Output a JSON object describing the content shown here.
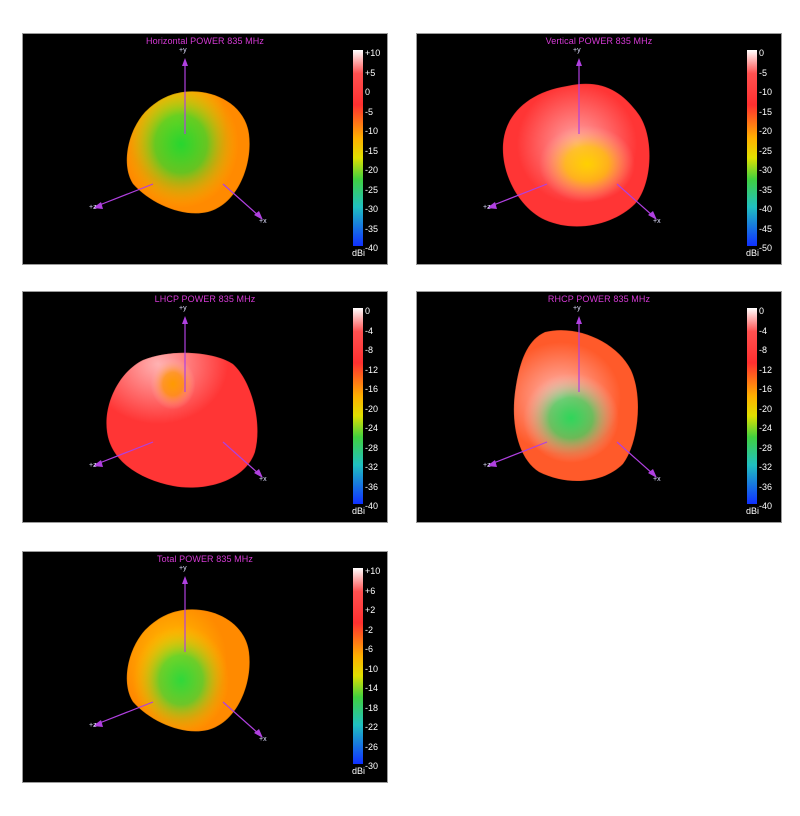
{
  "chart_data": [
    {
      "type": "heatmap",
      "title": "Horizontal POWER 835  MHz",
      "colorbar_ticks": [
        "+10",
        "+5",
        "0",
        "-5",
        "-10",
        "-15",
        "-20",
        "-25",
        "-30",
        "-35",
        "-40"
      ],
      "colorbar_unit": "dBi",
      "range": [
        -40,
        10
      ],
      "axis_labels": {
        "x": "+x",
        "y": "+y",
        "z": "+z"
      },
      "dominant_colors": [
        "#ff8a00",
        "#ffd300",
        "#27d62f"
      ]
    },
    {
      "type": "heatmap",
      "title": "Vertical POWER 835  MHz",
      "colorbar_ticks": [
        "0",
        "-5",
        "-10",
        "-15",
        "-20",
        "-25",
        "-30",
        "-35",
        "-40",
        "-45",
        "-50"
      ],
      "colorbar_unit": "dBi",
      "range": [
        -50,
        0
      ],
      "axis_labels": {
        "x": "+x",
        "y": "+y",
        "z": "+z"
      },
      "dominant_colors": [
        "#ff3535",
        "#ffb3b3",
        "#ffd000"
      ]
    },
    {
      "type": "heatmap",
      "title": "LHCP POWER 835  MHz",
      "colorbar_ticks": [
        "0",
        "-4",
        "-8",
        "-12",
        "-16",
        "-20",
        "-24",
        "-28",
        "-32",
        "-36",
        "-40"
      ],
      "colorbar_unit": "dBi",
      "range": [
        -40,
        0
      ],
      "axis_labels": {
        "x": "+x",
        "y": "+y",
        "z": "+z"
      },
      "dominant_colors": [
        "#ff3535",
        "#ffc0c0",
        "#ff9a00"
      ]
    },
    {
      "type": "heatmap",
      "title": "RHCP POWER 835  MHz",
      "colorbar_ticks": [
        "0",
        "-4",
        "-8",
        "-12",
        "-16",
        "-20",
        "-24",
        "-28",
        "-32",
        "-36",
        "-40"
      ],
      "colorbar_unit": "dBi",
      "range": [
        -40,
        0
      ],
      "axis_labels": {
        "x": "+x",
        "y": "+y",
        "z": "+z"
      },
      "dominant_colors": [
        "#ff5a2a",
        "#ffc8c8",
        "#2fd65a"
      ]
    },
    {
      "type": "heatmap",
      "title": "Total POWER 835  MHz",
      "colorbar_ticks": [
        "+10",
        "+6",
        "+2",
        "-2",
        "-6",
        "-10",
        "-14",
        "-18",
        "-22",
        "-26",
        "-30"
      ],
      "colorbar_unit": "dBi",
      "range": [
        -30,
        10
      ],
      "axis_labels": {
        "x": "+x",
        "y": "+y",
        "z": "+z"
      },
      "dominant_colors": [
        "#ff8a00",
        "#ffd300",
        "#30d83a"
      ]
    }
  ]
}
